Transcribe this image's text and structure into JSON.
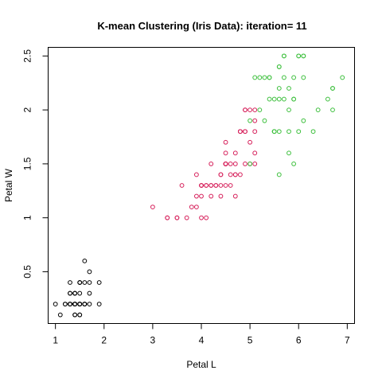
{
  "chart_data": {
    "type": "scatter",
    "title": "K-mean Clustering (Iris Data): iteration= 11",
    "xlabel": "Petal L",
    "ylabel": "Petal W",
    "xlim": [
      0.85,
      7.15
    ],
    "ylim": [
      0.02,
      2.58
    ],
    "xticks": [
      1,
      2,
      3,
      4,
      5,
      6,
      7
    ],
    "yticks": [
      0.5,
      1.0,
      1.5,
      2.0,
      2.5
    ],
    "grid": false,
    "legend": "none",
    "series": [
      {
        "color": "#000000",
        "points": [
          [
            1.4,
            0.2
          ],
          [
            1.4,
            0.2
          ],
          [
            1.3,
            0.2
          ],
          [
            1.5,
            0.2
          ],
          [
            1.4,
            0.2
          ],
          [
            1.7,
            0.4
          ],
          [
            1.4,
            0.3
          ],
          [
            1.5,
            0.2
          ],
          [
            1.4,
            0.2
          ],
          [
            1.5,
            0.1
          ],
          [
            1.5,
            0.2
          ],
          [
            1.6,
            0.2
          ],
          [
            1.4,
            0.1
          ],
          [
            1.1,
            0.1
          ],
          [
            1.2,
            0.2
          ],
          [
            1.5,
            0.4
          ],
          [
            1.3,
            0.4
          ],
          [
            1.4,
            0.3
          ],
          [
            1.7,
            0.3
          ],
          [
            1.5,
            0.3
          ],
          [
            1.7,
            0.2
          ],
          [
            1.5,
            0.4
          ],
          [
            1.0,
            0.2
          ],
          [
            1.7,
            0.5
          ],
          [
            1.9,
            0.2
          ],
          [
            1.6,
            0.2
          ],
          [
            1.6,
            0.4
          ],
          [
            1.5,
            0.2
          ],
          [
            1.4,
            0.2
          ],
          [
            1.6,
            0.2
          ],
          [
            1.6,
            0.2
          ],
          [
            1.5,
            0.4
          ],
          [
            1.5,
            0.1
          ],
          [
            1.4,
            0.2
          ],
          [
            1.5,
            0.2
          ],
          [
            1.2,
            0.2
          ],
          [
            1.3,
            0.2
          ],
          [
            1.4,
            0.1
          ],
          [
            1.3,
            0.2
          ],
          [
            1.5,
            0.2
          ],
          [
            1.3,
            0.3
          ],
          [
            1.3,
            0.3
          ],
          [
            1.3,
            0.2
          ],
          [
            1.6,
            0.6
          ],
          [
            1.9,
            0.4
          ],
          [
            1.4,
            0.3
          ],
          [
            1.6,
            0.2
          ],
          [
            1.4,
            0.2
          ],
          [
            1.5,
            0.2
          ],
          [
            1.4,
            0.2
          ]
        ]
      },
      {
        "color": "#d61f5a",
        "points": [
          [
            4.7,
            1.4
          ],
          [
            4.5,
            1.5
          ],
          [
            4.0,
            1.3
          ],
          [
            4.6,
            1.5
          ],
          [
            4.5,
            1.3
          ],
          [
            4.7,
            1.6
          ],
          [
            3.3,
            1.0
          ],
          [
            4.6,
            1.3
          ],
          [
            3.9,
            1.4
          ],
          [
            3.5,
            1.0
          ],
          [
            4.2,
            1.5
          ],
          [
            4.0,
            1.0
          ],
          [
            4.7,
            1.4
          ],
          [
            3.6,
            1.3
          ],
          [
            4.4,
            1.4
          ],
          [
            4.5,
            1.5
          ],
          [
            4.1,
            1.0
          ],
          [
            4.5,
            1.5
          ],
          [
            3.9,
            1.1
          ],
          [
            4.8,
            1.8
          ],
          [
            4.0,
            1.3
          ],
          [
            4.9,
            1.5
          ],
          [
            4.7,
            1.2
          ],
          [
            4.3,
            1.3
          ],
          [
            4.4,
            1.4
          ],
          [
            4.8,
            1.4
          ],
          [
            5.0,
            1.7
          ],
          [
            4.5,
            1.5
          ],
          [
            3.5,
            1.0
          ],
          [
            3.8,
            1.1
          ],
          [
            3.7,
            1.0
          ],
          [
            3.9,
            1.2
          ],
          [
            5.1,
            1.6
          ],
          [
            4.5,
            1.5
          ],
          [
            4.5,
            1.6
          ],
          [
            4.7,
            1.5
          ],
          [
            4.4,
            1.3
          ],
          [
            4.1,
            1.3
          ],
          [
            4.0,
            1.3
          ],
          [
            4.4,
            1.2
          ],
          [
            4.6,
            1.4
          ],
          [
            4.0,
            1.2
          ],
          [
            3.3,
            1.0
          ],
          [
            4.2,
            1.3
          ],
          [
            4.2,
            1.2
          ],
          [
            4.2,
            1.3
          ],
          [
            4.3,
            1.3
          ],
          [
            3.0,
            1.1
          ],
          [
            4.1,
            1.3
          ],
          [
            5.1,
            1.9
          ],
          [
            4.5,
            1.7
          ],
          [
            4.9,
            1.8
          ],
          [
            4.9,
            2.0
          ],
          [
            5.0,
            2.0
          ],
          [
            5.1,
            2.0
          ],
          [
            4.8,
            1.8
          ],
          [
            4.9,
            1.8
          ],
          [
            5.0,
            1.5
          ],
          [
            5.1,
            1.5
          ],
          [
            4.9,
            2.0
          ],
          [
            5.1,
            1.8
          ],
          [
            4.8,
            1.8
          ]
        ]
      },
      {
        "color": "#3cbf3c",
        "points": [
          [
            6.0,
            2.5
          ],
          [
            5.9,
            2.1
          ],
          [
            5.6,
            1.8
          ],
          [
            5.8,
            2.2
          ],
          [
            6.6,
            2.1
          ],
          [
            6.3,
            1.8
          ],
          [
            5.8,
            1.8
          ],
          [
            6.1,
            2.5
          ],
          [
            5.3,
            1.9
          ],
          [
            5.5,
            2.1
          ],
          [
            5.5,
            1.8
          ],
          [
            5.7,
            2.5
          ],
          [
            5.3,
            2.3
          ],
          [
            5.5,
            1.8
          ],
          [
            6.7,
            2.2
          ],
          [
            6.9,
            2.3
          ],
          [
            5.7,
            2.3
          ],
          [
            6.7,
            2.0
          ],
          [
            5.7,
            2.1
          ],
          [
            6.0,
            1.8
          ],
          [
            5.8,
            1.6
          ],
          [
            6.1,
            1.9
          ],
          [
            6.4,
            2.0
          ],
          [
            5.6,
            2.2
          ],
          [
            5.6,
            1.4
          ],
          [
            6.1,
            2.3
          ],
          [
            5.6,
            2.4
          ],
          [
            5.5,
            1.8
          ],
          [
            5.4,
            2.1
          ],
          [
            5.6,
            2.4
          ],
          [
            5.1,
            2.3
          ],
          [
            5.9,
            2.3
          ],
          [
            5.7,
            2.5
          ],
          [
            5.2,
            2.3
          ],
          [
            5.0,
            1.9
          ],
          [
            5.2,
            2.0
          ],
          [
            5.4,
            2.3
          ],
          [
            5.0,
            1.5
          ],
          [
            5.8,
            2.0
          ],
          [
            5.6,
            2.1
          ],
          [
            6.7,
            2.2
          ],
          [
            6.1,
            2.5
          ],
          [
            5.9,
            1.5
          ],
          [
            5.4,
            2.3
          ],
          [
            5.9,
            2.1
          ],
          [
            6.0,
            2.5
          ]
        ]
      }
    ]
  }
}
